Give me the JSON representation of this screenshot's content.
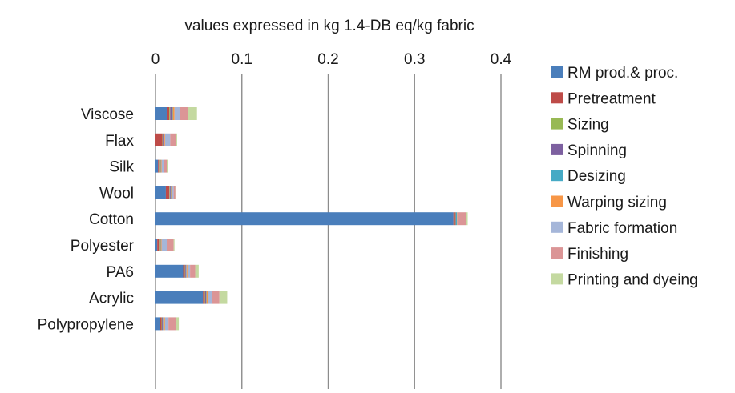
{
  "chart_data": {
    "type": "bar",
    "orientation": "horizontal",
    "stacked": true,
    "title": "values expressed in kg 1.4-DB eq/kg fabric",
    "xlabel": "",
    "ylabel": "",
    "xlim": [
      0,
      0.4
    ],
    "x_ticks": [
      "0",
      "0.1",
      "0.2",
      "0.3",
      "0.4"
    ],
    "x_tick_values": [
      0,
      0.1,
      0.2,
      0.3,
      0.4
    ],
    "x_axis_position": "top",
    "grid": true,
    "legend_position": "right",
    "categories": [
      "Viscose",
      "Flax",
      "Silk",
      "Wool",
      "Cotton",
      "Polyester",
      "PA6",
      "Acrylic",
      "Polypropylene"
    ],
    "series": [
      {
        "name": "RM prod.& proc.",
        "color": "#4a7ebb",
        "values": [
          0.013,
          0.0,
          0.003,
          0.012,
          0.345,
          0.002,
          0.032,
          0.055,
          0.005
        ]
      },
      {
        "name": "Pretreatment",
        "color": "#be4b48",
        "values": [
          0.003,
          0.008,
          0.001,
          0.004,
          0.002,
          0.002,
          0.002,
          0.002,
          0.002
        ]
      },
      {
        "name": "Sizing",
        "color": "#98b954",
        "values": [
          0.001,
          0.0005,
          0.0005,
          0.0005,
          0.0005,
          0.0005,
          0.0005,
          0.0005,
          0.0005
        ]
      },
      {
        "name": "Spinning",
        "color": "#7d60a0",
        "values": [
          0.002,
          0.001,
          0.001,
          0.001,
          0.0005,
          0.001,
          0.001,
          0.001,
          0.001
        ]
      },
      {
        "name": "Desizing",
        "color": "#46aac5",
        "values": [
          0.001,
          0.0005,
          0.0005,
          0.0005,
          0.001,
          0.0005,
          0.0005,
          0.0005,
          0.0005
        ]
      },
      {
        "name": "Warping sizing",
        "color": "#f79646",
        "values": [
          0.002,
          0.001,
          0.001,
          0.001,
          0.0005,
          0.001,
          0.001,
          0.002,
          0.002
        ]
      },
      {
        "name": "Fabric formation",
        "color": "#a5b6d9",
        "values": [
          0.006,
          0.006,
          0.003,
          0.002,
          0.001,
          0.006,
          0.003,
          0.004,
          0.004
        ]
      },
      {
        "name": "Finishing",
        "color": "#db9596",
        "values": [
          0.01,
          0.007,
          0.003,
          0.002,
          0.009,
          0.008,
          0.006,
          0.009,
          0.009
        ]
      },
      {
        "name": "Printing and dyeing",
        "color": "#c4d9a0",
        "values": [
          0.01,
          0.001,
          0.001,
          0.001,
          0.002,
          0.001,
          0.004,
          0.009,
          0.003
        ]
      }
    ]
  }
}
